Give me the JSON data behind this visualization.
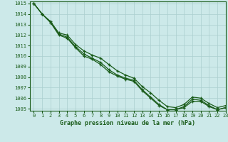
{
  "title": "Graphe pression niveau de la mer (hPa)",
  "background_color": "#cce9e9",
  "grid_color": "#aacfcf",
  "line_color": "#1a5c1a",
  "xlim": [
    -0.5,
    23
  ],
  "ylim": [
    1004.8,
    1015.2
  ],
  "yticks": [
    1005,
    1006,
    1007,
    1008,
    1009,
    1010,
    1011,
    1012,
    1013,
    1014,
    1015
  ],
  "xticks": [
    0,
    1,
    2,
    3,
    4,
    5,
    6,
    7,
    8,
    9,
    10,
    11,
    12,
    13,
    14,
    15,
    16,
    17,
    18,
    19,
    20,
    21,
    22,
    23
  ],
  "series1": [
    1015.0,
    1014.0,
    1013.3,
    1012.2,
    1012.0,
    1011.1,
    1010.5,
    1010.1,
    1009.8,
    1009.2,
    1008.6,
    1008.2,
    1007.9,
    1007.1,
    1006.5,
    1005.8,
    1005.2,
    1005.1,
    1005.4,
    1006.1,
    1006.0,
    1005.5,
    1005.1,
    1005.3
  ],
  "series2": [
    1015.0,
    1014.0,
    1013.2,
    1012.1,
    1011.8,
    1010.9,
    1010.2,
    1009.8,
    1009.4,
    1008.7,
    1008.2,
    1007.9,
    1007.7,
    1006.8,
    1006.1,
    1005.4,
    1004.9,
    1004.9,
    1005.2,
    1005.9,
    1005.8,
    1005.3,
    1004.9,
    1005.1
  ],
  "series3": [
    1015.0,
    1014.0,
    1013.2,
    1012.0,
    1011.7,
    1010.8,
    1010.0,
    1009.7,
    1009.2,
    1008.5,
    1008.1,
    1007.8,
    1007.6,
    1006.7,
    1006.0,
    1005.3,
    1004.9,
    1004.9,
    1005.1,
    1005.7,
    1005.7,
    1005.2,
    1004.9,
    1005.1
  ],
  "title_fontsize": 6,
  "tick_fontsize": 5,
  "linewidth": 0.9,
  "markersize": 3.5
}
